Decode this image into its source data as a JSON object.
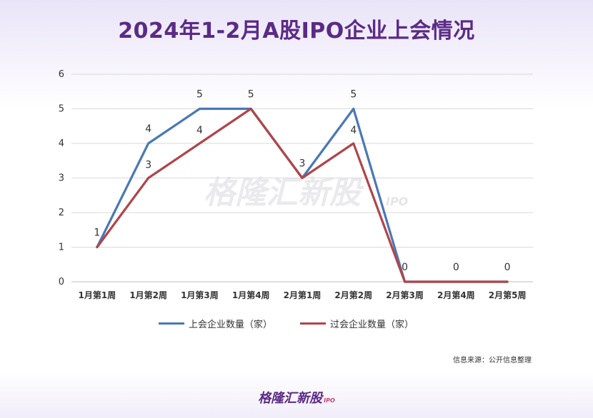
{
  "header": {
    "title": "2024年1-2月A股IPO企业上会情况"
  },
  "footer": {
    "source": "信息来源：公开信息整理",
    "logo_text": "格隆汇新股",
    "logo_suffix": "IPO"
  },
  "watermark": {
    "text": "格隆汇新股",
    "suffix": "IPO"
  },
  "chart_data": {
    "type": "line",
    "categories": [
      "1月第1周",
      "1月第2周",
      "1月第3周",
      "1月第4周",
      "2月第1周",
      "2月第2周",
      "2月第3周",
      "2月第4周",
      "2月第5周"
    ],
    "series": [
      {
        "name": "上会企业数量（家）",
        "values": [
          1,
          4,
          5,
          5,
          3,
          5,
          0,
          0,
          0
        ],
        "color": "#4a78b6",
        "labels": [
          "1",
          "4",
          "5",
          "5",
          "3",
          "5",
          "0",
          "0",
          "0"
        ]
      },
      {
        "name": "过会企业数量（家）",
        "values": [
          1,
          3,
          4,
          5,
          3,
          4,
          0,
          0,
          0
        ],
        "color": "#b0454a",
        "labels": [
          "",
          "3",
          "4",
          "",
          "",
          "4",
          "",
          "",
          ""
        ]
      }
    ],
    "ylim": [
      0,
      6
    ],
    "yticks": [
      0,
      1,
      2,
      3,
      4,
      5,
      6
    ],
    "grid": true,
    "legend": "bottom"
  }
}
